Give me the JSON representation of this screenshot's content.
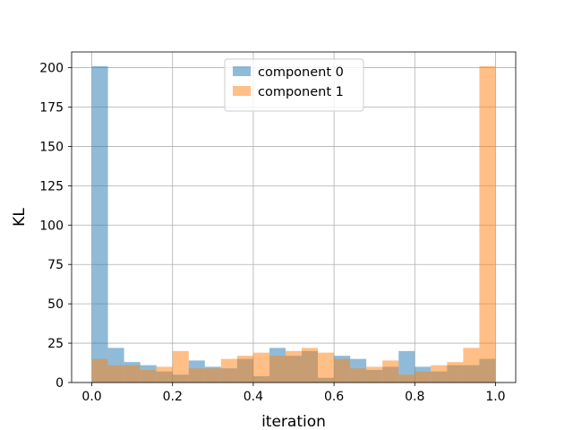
{
  "chart_data": {
    "type": "histogram",
    "title": "",
    "xlabel": "iteration",
    "ylabel": "KL",
    "xlim": [
      -0.05,
      1.05
    ],
    "ylim": [
      0,
      210
    ],
    "xticks": [
      0.0,
      0.2,
      0.4,
      0.6,
      0.8,
      1.0
    ],
    "xtick_labels": [
      "0.0",
      "0.2",
      "0.4",
      "0.6",
      "0.8",
      "1.0"
    ],
    "yticks": [
      0,
      25,
      50,
      75,
      100,
      125,
      150,
      175,
      200
    ],
    "ytick_labels": [
      "0",
      "25",
      "50",
      "75",
      "100",
      "125",
      "150",
      "175",
      "200"
    ],
    "grid": true,
    "legend_position": "top-center",
    "bin_edges": [
      0.0,
      0.04,
      0.08,
      0.12,
      0.16,
      0.2,
      0.24,
      0.28,
      0.32,
      0.36,
      0.4,
      0.44,
      0.48,
      0.52,
      0.56,
      0.6,
      0.64,
      0.68,
      0.72,
      0.76,
      0.8,
      0.84,
      0.88,
      0.92,
      0.96,
      1.0
    ],
    "series": [
      {
        "name": "component 0",
        "color": "#1f77b4",
        "alpha": 0.5,
        "values": [
          201,
          22,
          13,
          11,
          7,
          5,
          14,
          10,
          9,
          15,
          4,
          22,
          17,
          20,
          3,
          17,
          15,
          8,
          10,
          20,
          10,
          7,
          11,
          11,
          15
        ]
      },
      {
        "name": "component 1",
        "color": "#ff7f0e",
        "alpha": 0.5,
        "values": [
          15,
          11,
          11,
          8,
          10,
          20,
          9,
          9,
          15,
          17,
          19,
          17,
          20,
          22,
          19,
          15,
          9,
          10,
          14,
          5,
          7,
          11,
          13,
          22,
          201
        ]
      }
    ]
  }
}
